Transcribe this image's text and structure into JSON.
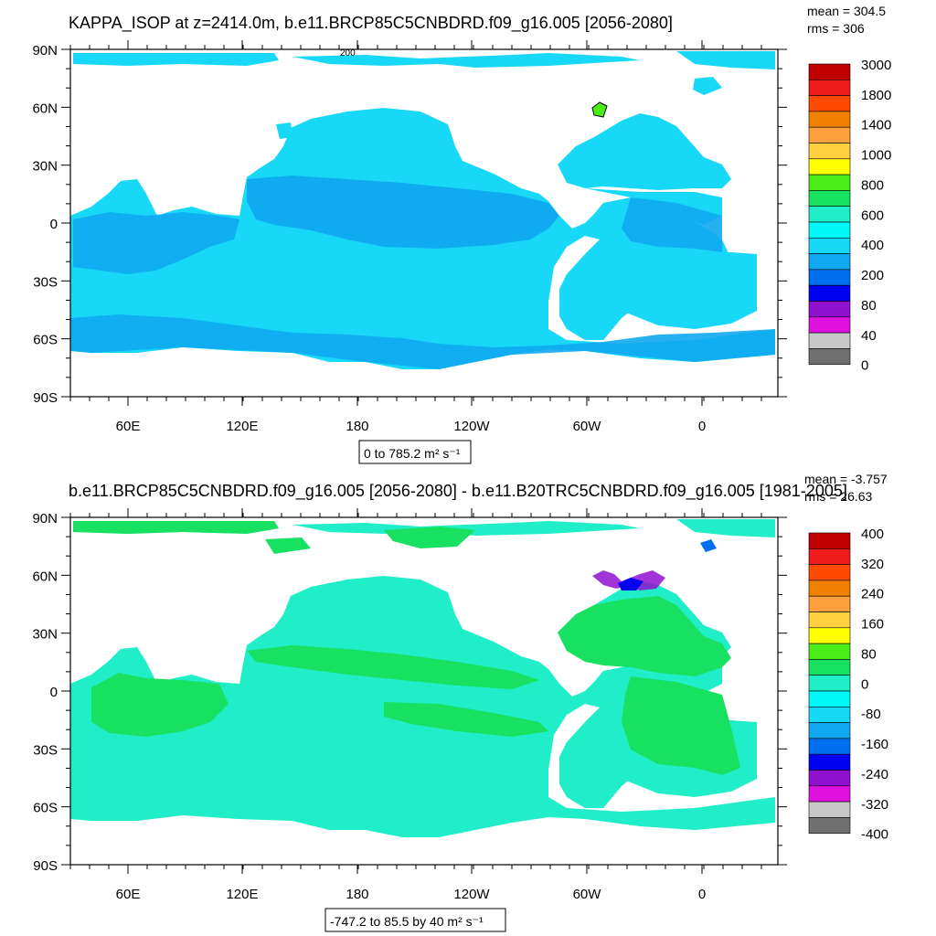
{
  "panels": [
    {
      "title": "KAPPA_ISOP at z=2414.0m, b.e11.BRCP85C5CNBDRD.f09_g16.005 [2056-2080]",
      "mean": "mean = 304.5",
      "rms": "rms = 306",
      "range_label": "0 to 785.2 m² s⁻¹",
      "colorbar": {
        "labels": [
          "3000",
          "1800",
          "1400",
          "1000",
          "800",
          "600",
          "400",
          "200",
          "80",
          "40",
          "0"
        ],
        "colors": [
          "#c00000",
          "#ee1c1c",
          "#ff4a00",
          "#f08000",
          "#ffa040",
          "#ffd040",
          "#ffff00",
          "#4cec18",
          "#18e060",
          "#20eec8",
          "#00f8f8",
          "#18d8f8",
          "#10a8f0",
          "#0070f0",
          "#0000f0",
          "#9010d0",
          "#e010e0",
          "#c8c8c8",
          "#707070"
        ]
      },
      "ocean_color": "#18d8f8",
      "band_color": "#10a8f0",
      "annotation": "200"
    },
    {
      "title": "b.e11.BRCP85C5CNBDRD.f09_g16.005 [2056-2080] - b.e11.B20TRC5CNBDRD.f09_g16.005 [1981-2005]",
      "mean": "mean = -3.757",
      "rms": "rms = 26.63",
      "range_label": "-747.2 to 85.5 by 40 m² s⁻¹",
      "colorbar": {
        "labels": [
          "400",
          "320",
          "240",
          "160",
          "80",
          "0",
          "-80",
          "-160",
          "-240",
          "-320",
          "-400"
        ],
        "colors": [
          "#c00000",
          "#ee1c1c",
          "#ff4a00",
          "#f08000",
          "#ffa040",
          "#ffd040",
          "#ffff00",
          "#4cec18",
          "#18e060",
          "#20eec8",
          "#00f8f8",
          "#18d8f8",
          "#10a8f0",
          "#0070f0",
          "#0000f0",
          "#9010d0",
          "#e010e0",
          "#c8c8c8",
          "#707070"
        ]
      },
      "ocean_color": "#20eec8",
      "band_color": "#18e060"
    }
  ],
  "axes": {
    "lat_labels": [
      "90N",
      "60N",
      "30N",
      "0",
      "30S",
      "60S",
      "90S"
    ],
    "lon_labels": [
      "60E",
      "120E",
      "180",
      "120W",
      "60W",
      "0"
    ]
  }
}
